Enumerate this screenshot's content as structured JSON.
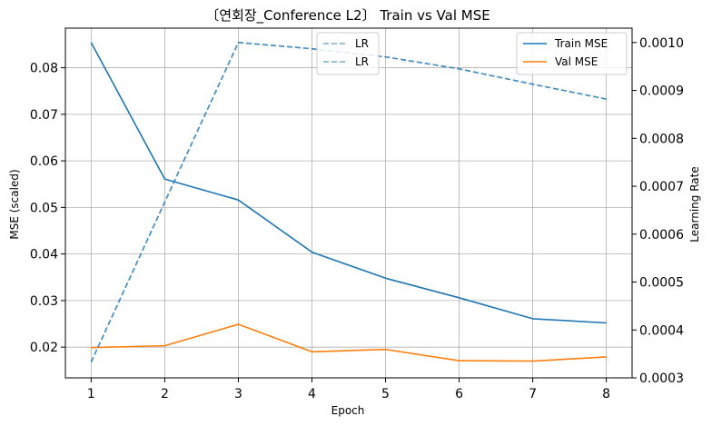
{
  "chart_data": {
    "type": "line",
    "title": "〔연회장_Conference L2〕 Train vs Val MSE",
    "xlabel": "Epoch",
    "ylabel": "MSE (scaled)",
    "y2label": "Learning Rate",
    "x": [
      1,
      2,
      3,
      4,
      5,
      6,
      7,
      8
    ],
    "xlim": [
      0.65,
      8.35
    ],
    "ylim": [
      0.0134,
      0.0885
    ],
    "y2lim": [
      0.0003,
      0.00103
    ],
    "xticks": [
      "1",
      "2",
      "3",
      "4",
      "5",
      "6",
      "7",
      "8"
    ],
    "yticks": [
      "0.02",
      "0.03",
      "0.04",
      "0.05",
      "0.06",
      "0.07",
      "0.08"
    ],
    "y2ticks": [
      "0.0003",
      "0.0004",
      "0.0005",
      "0.0006",
      "0.0007",
      "0.0008",
      "0.0009",
      "0.0010"
    ],
    "grid": true,
    "series": [
      {
        "name": "Train MSE",
        "axis": "left",
        "color": "#1f77b4",
        "dash": "solid",
        "values": [
          0.0854,
          0.0561,
          0.0516,
          0.0404,
          0.0348,
          0.0306,
          0.0261,
          0.0252
        ]
      },
      {
        "name": "Val MSE",
        "axis": "left",
        "color": "#ff7f0e",
        "dash": "solid",
        "values": [
          0.0199,
          0.0203,
          0.0249,
          0.019,
          0.0195,
          0.0171,
          0.017,
          0.0179
        ]
      },
      {
        "name": "LR",
        "axis": "right",
        "color": "#1f77b4",
        "dash": "dashed",
        "values": [
          0.000333,
          0.000667,
          0.001,
          0.000987,
          0.00097,
          0.000945,
          0.000913,
          0.000882
        ]
      },
      {
        "name": "LR",
        "axis": "right",
        "color": "#1f77b4",
        "dash": "dashed",
        "values": [
          0.000333,
          0.000667,
          0.001,
          0.000987,
          0.00097,
          0.000945,
          0.000913,
          0.000882
        ]
      }
    ],
    "legend_left": {
      "placement": "top-center",
      "entries": [
        "LR",
        "LR"
      ]
    },
    "legend_right": {
      "placement": "top-right",
      "entries": [
        "Train MSE",
        "Val MSE"
      ]
    }
  }
}
